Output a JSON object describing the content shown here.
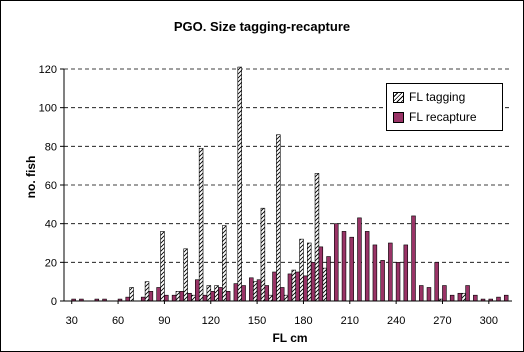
{
  "chart_data": {
    "type": "bar",
    "title": "PGO. Size tagging-recapture",
    "xlabel": "FL cm",
    "ylabel": "no. fish",
    "xlim": [
      25,
      315
    ],
    "ylim": [
      0,
      120
    ],
    "x_ticks": [
      30,
      60,
      90,
      120,
      150,
      180,
      210,
      240,
      270,
      300
    ],
    "y_ticks": [
      0,
      20,
      40,
      60,
      80,
      100,
      120
    ],
    "grid": "horizontal dashed",
    "legend_position": "top-right",
    "bin_width": 5,
    "series": [
      {
        "name": "FL tagging",
        "pattern": "diagonal-hatch",
        "points": [
          [
            70,
            7
          ],
          [
            80,
            10
          ],
          [
            90,
            36
          ],
          [
            100,
            5
          ],
          [
            105,
            27
          ],
          [
            110,
            3
          ],
          [
            115,
            79
          ],
          [
            120,
            8
          ],
          [
            125,
            8
          ],
          [
            130,
            39
          ],
          [
            140,
            121
          ],
          [
            150,
            10
          ],
          [
            155,
            48
          ],
          [
            160,
            3
          ],
          [
            165,
            86
          ],
          [
            170,
            3
          ],
          [
            175,
            16
          ],
          [
            180,
            32
          ],
          [
            185,
            30
          ],
          [
            190,
            66
          ],
          [
            195,
            17
          ],
          [
            270,
            1
          ],
          [
            285,
            4
          ]
        ]
      },
      {
        "name": "FL recapture",
        "color": "#993366",
        "points": [
          [
            30,
            1
          ],
          [
            35,
            1
          ],
          [
            45,
            1
          ],
          [
            50,
            1
          ],
          [
            60,
            1
          ],
          [
            65,
            2
          ],
          [
            75,
            2
          ],
          [
            80,
            5
          ],
          [
            85,
            7
          ],
          [
            90,
            3
          ],
          [
            95,
            3
          ],
          [
            100,
            5
          ],
          [
            105,
            4
          ],
          [
            110,
            11
          ],
          [
            115,
            3
          ],
          [
            120,
            5
          ],
          [
            125,
            7
          ],
          [
            130,
            5
          ],
          [
            135,
            9
          ],
          [
            140,
            8
          ],
          [
            145,
            12
          ],
          [
            150,
            11
          ],
          [
            155,
            8
          ],
          [
            160,
            15
          ],
          [
            165,
            7
          ],
          [
            170,
            14
          ],
          [
            175,
            15
          ],
          [
            180,
            13
          ],
          [
            185,
            20
          ],
          [
            190,
            28
          ],
          [
            195,
            23
          ],
          [
            200,
            40
          ],
          [
            205,
            36
          ],
          [
            210,
            33
          ],
          [
            215,
            43
          ],
          [
            220,
            36
          ],
          [
            225,
            29
          ],
          [
            230,
            21
          ],
          [
            235,
            30
          ],
          [
            240,
            20
          ],
          [
            245,
            29
          ],
          [
            250,
            44
          ],
          [
            255,
            8
          ],
          [
            260,
            7
          ],
          [
            265,
            20
          ],
          [
            270,
            8
          ],
          [
            275,
            3
          ],
          [
            280,
            4
          ],
          [
            285,
            8
          ],
          [
            290,
            3
          ],
          [
            295,
            1
          ],
          [
            300,
            1
          ],
          [
            305,
            2
          ],
          [
            310,
            3
          ]
        ]
      }
    ]
  }
}
